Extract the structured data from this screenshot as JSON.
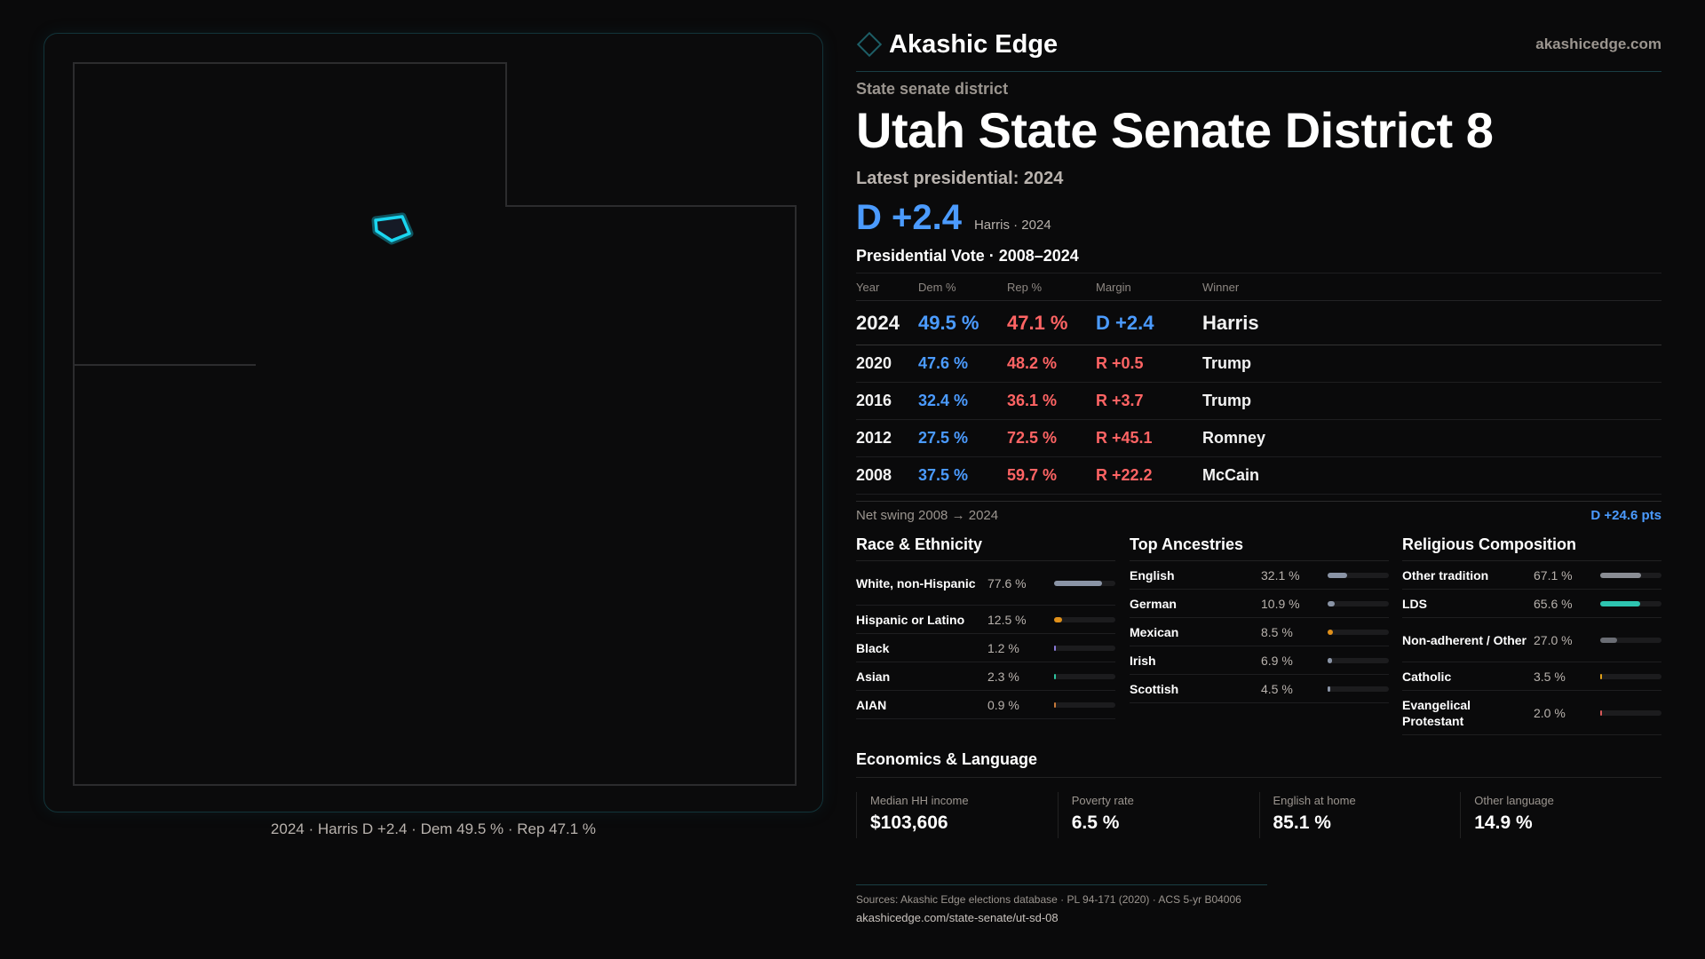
{
  "brand": {
    "name": "Akashic Edge",
    "site": "akashicedge.com"
  },
  "map": {
    "caption": "2024 · Harris D +2.4 · Dem 49.5 % · Rep 47.1 %",
    "highlight_color": "#1ad6f0"
  },
  "header": {
    "kicker": "State senate district",
    "title": "Utah State Senate District 8",
    "latest": "Latest presidential: 2024",
    "margin": "D +2.4",
    "margin_sub": "Harris · 2024"
  },
  "presidential": {
    "title": "Presidential Vote · 2008–2024",
    "columns": [
      "Year",
      "Dem %",
      "Rep %",
      "Margin",
      "Winner"
    ],
    "rows": [
      {
        "year": "2024",
        "dem": "49.5 %",
        "rep": "47.1 %",
        "margin": "D +2.4",
        "winner": "Harris",
        "party": "D"
      },
      {
        "year": "2020",
        "dem": "47.6 %",
        "rep": "48.2 %",
        "margin": "R +0.5",
        "winner": "Trump",
        "party": "R"
      },
      {
        "year": "2016",
        "dem": "32.4 %",
        "rep": "36.1 %",
        "margin": "R +3.7",
        "winner": "Trump",
        "party": "R"
      },
      {
        "year": "2012",
        "dem": "27.5 %",
        "rep": "72.5 %",
        "margin": "R +45.1",
        "winner": "Romney",
        "party": "R"
      },
      {
        "year": "2008",
        "dem": "37.5 %",
        "rep": "59.7 %",
        "margin": "R +22.2",
        "winner": "McCain",
        "party": "R"
      }
    ],
    "swing_label": "Net swing 2008 → 2024",
    "swing_value": "D +24.6 pts"
  },
  "race": {
    "title": "Race & Ethnicity",
    "items": [
      {
        "label": "White, non-Hispanic",
        "value": "77.6 %",
        "pct": 77.6,
        "color": "#8a94a6"
      },
      {
        "label": "Hispanic or Latino",
        "value": "12.5 %",
        "pct": 12.5,
        "color": "#e0901a"
      },
      {
        "label": "Black",
        "value": "1.2 %",
        "pct": 1.2,
        "color": "#8a7ad8"
      },
      {
        "label": "Asian",
        "value": "2.3 %",
        "pct": 2.3,
        "color": "#2ec4a0"
      },
      {
        "label": "AIAN",
        "value": "0.9 %",
        "pct": 0.9,
        "color": "#c87a3a"
      }
    ]
  },
  "ancestry": {
    "title": "Top Ancestries",
    "items": [
      {
        "label": "English",
        "value": "32.1 %",
        "pct": 32.1,
        "color": "#8a94a6"
      },
      {
        "label": "German",
        "value": "10.9 %",
        "pct": 10.9,
        "color": "#8a94a6"
      },
      {
        "label": "Mexican",
        "value": "8.5 %",
        "pct": 8.5,
        "color": "#e0901a"
      },
      {
        "label": "Irish",
        "value": "6.9 %",
        "pct": 6.9,
        "color": "#8a94a6"
      },
      {
        "label": "Scottish",
        "value": "4.5 %",
        "pct": 4.5,
        "color": "#8a94a6"
      }
    ]
  },
  "religion": {
    "title": "Religious Composition",
    "items": [
      {
        "label": "Other tradition",
        "value": "67.1 %",
        "pct": 67.1,
        "color": "#8a8d94"
      },
      {
        "label": "LDS",
        "value": "65.6 %",
        "pct": 65.6,
        "color": "#2ec4b0"
      },
      {
        "label": "Non-adherent / Other",
        "value": "27.0 %",
        "pct": 27.0,
        "color": "#6a6d74"
      },
      {
        "label": "Catholic",
        "value": "3.5 %",
        "pct": 3.5,
        "color": "#e0a01a"
      },
      {
        "label": "Evangelical Protestant",
        "value": "2.0 %",
        "pct": 2.0,
        "color": "#d85a5a"
      }
    ]
  },
  "economics": {
    "title": "Economics & Language",
    "cards": [
      {
        "label": "Median HH income",
        "value": "$103,606"
      },
      {
        "label": "Poverty rate",
        "value": "6.5 %"
      },
      {
        "label": "English at home",
        "value": "85.1 %"
      },
      {
        "label": "Other language",
        "value": "14.9 %"
      }
    ]
  },
  "footer": {
    "sources": "Sources: Akashic Edge elections database · PL 94-171 (2020) · ACS 5-yr B04006",
    "url": "akashicedge.com/state-senate/ut-sd-08"
  },
  "colors": {
    "dem": "#4b9bff",
    "rep": "#ff6464",
    "accent": "#1ad6f0"
  }
}
